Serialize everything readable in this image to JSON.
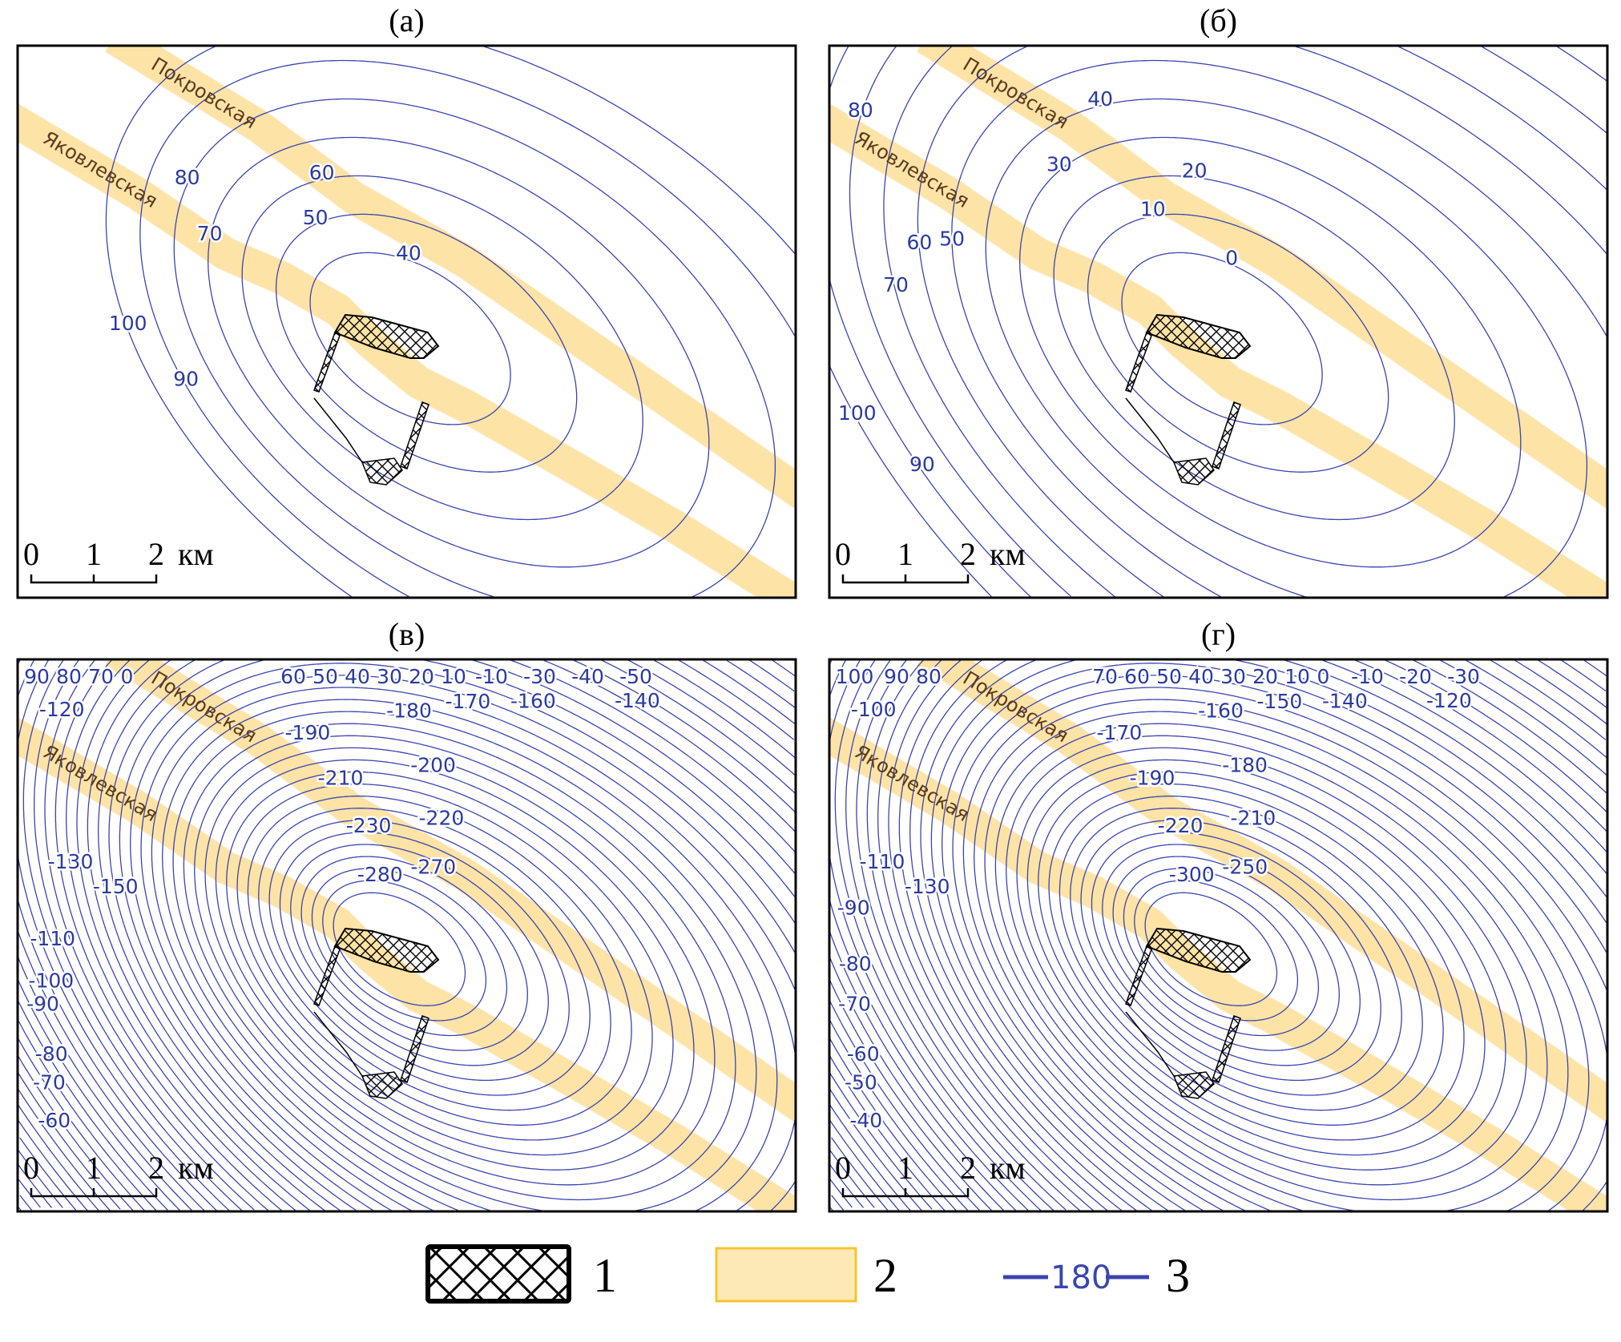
{
  "panels": [
    {
      "title": "(а)",
      "levels": [
        "100",
        "90",
        "80",
        "70",
        "60",
        "50",
        "40"
      ],
      "dense": false
    },
    {
      "title": "(б)",
      "levels": [
        "100",
        "90",
        "80",
        "70",
        "60",
        "50",
        "40",
        "30",
        "20",
        "10",
        "0"
      ],
      "dense": false
    },
    {
      "title": "(в)",
      "levels": [
        "90",
        "80",
        "70",
        "60",
        "50",
        "40",
        "30",
        "20",
        "10",
        "0",
        "-10",
        "-30",
        "-40",
        "-50",
        "-60",
        "-70",
        "-80",
        "-90",
        "-100",
        "-110",
        "-120",
        "-130",
        "-140",
        "-150",
        "-160",
        "-170",
        "-180",
        "-190",
        "-200",
        "-210",
        "-220",
        "-230",
        "-270",
        "-280"
      ],
      "dense": true
    },
    {
      "title": "(г)",
      "levels": [
        "100",
        "90",
        "80",
        "70",
        "60",
        "50",
        "40",
        "30",
        "20",
        "10",
        "0",
        "-10",
        "-20",
        "-30",
        "-40",
        "-50",
        "-60",
        "-70",
        "-80",
        "-90",
        "-100",
        "-110",
        "-120",
        "-130",
        "-140",
        "-150",
        "-160",
        "-170",
        "-180",
        "-190",
        "-210",
        "-220",
        "-250",
        "-300"
      ],
      "dense": true
    }
  ],
  "roads": {
    "north": "Покровская",
    "south": "Яковлевская"
  },
  "scale_bar": {
    "ticks": [
      "0",
      "1",
      "2"
    ],
    "unit": "км"
  },
  "legend": [
    {
      "symbol": "hatched-area",
      "label": "1"
    },
    {
      "symbol": "road-band",
      "label": "2"
    },
    {
      "symbol": "isoline",
      "sample_value": "180",
      "label": "3"
    }
  ],
  "colors": {
    "isoline": "#3b45b0",
    "road": "#fde3a6",
    "road_edge": "#f5c96a",
    "hatch": "#000000"
  }
}
